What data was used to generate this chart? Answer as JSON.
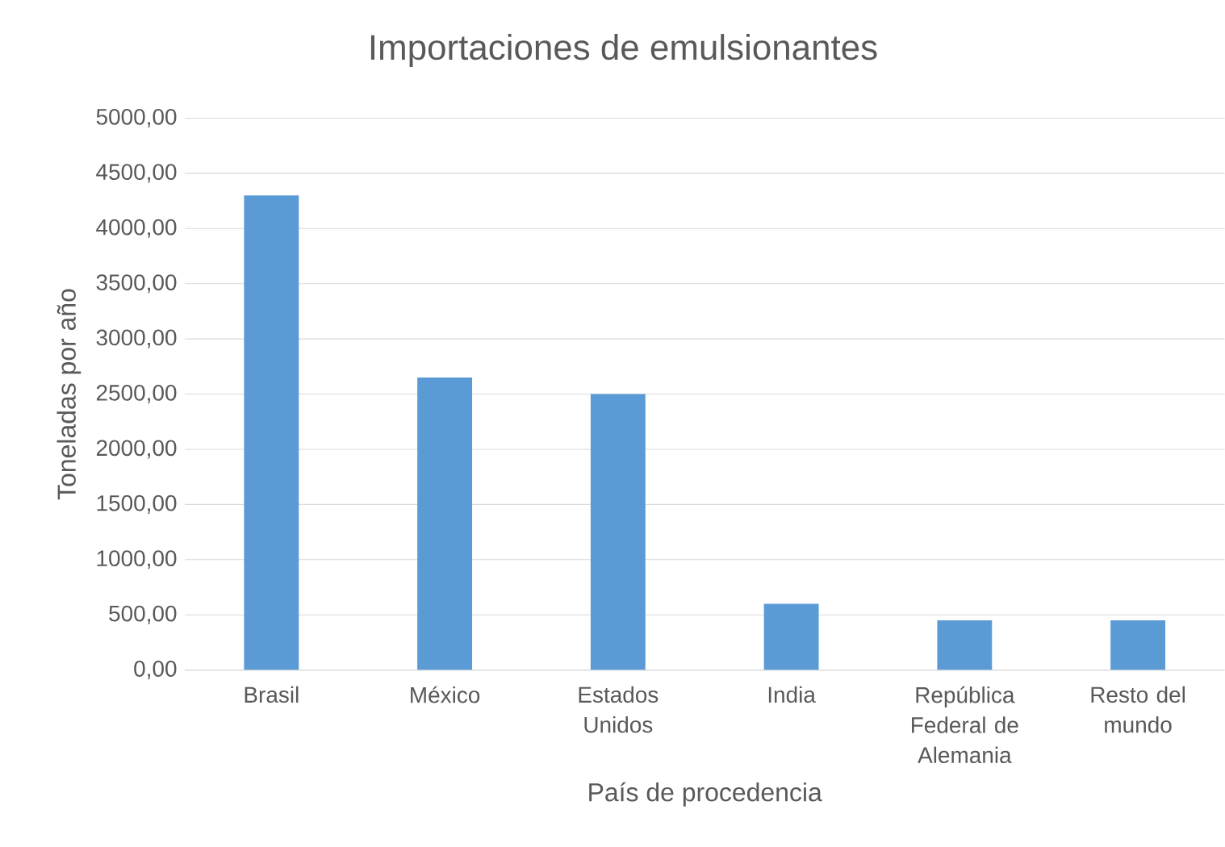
{
  "chart_data": {
    "type": "bar",
    "title": "Importaciones de emulsionantes",
    "xlabel": "País de procedencia",
    "ylabel": "Toneladas por año",
    "categories": [
      "Brasil",
      "México",
      "Estados Unidos",
      "India",
      "República Federal de Alemania",
      "Resto del mundo"
    ],
    "values": [
      4300,
      2650,
      2500,
      600,
      450,
      450
    ],
    "color": "#5b9bd5",
    "ylim": [
      0,
      5000
    ],
    "yticks": [
      {
        "value": 0,
        "label": "0,00"
      },
      {
        "value": 500,
        "label": "500,00"
      },
      {
        "value": 1000,
        "label": "1000,00"
      },
      {
        "value": 1500,
        "label": "1500,00"
      },
      {
        "value": 2000,
        "label": "2000,00"
      },
      {
        "value": 2500,
        "label": "2500,00"
      },
      {
        "value": 3000,
        "label": "3000,00"
      },
      {
        "value": 3500,
        "label": "3500,00"
      },
      {
        "value": 4000,
        "label": "4000,00"
      },
      {
        "value": 4500,
        "label": "4500,00"
      },
      {
        "value": 5000,
        "label": "5000,00"
      }
    ],
    "grid": "y"
  }
}
